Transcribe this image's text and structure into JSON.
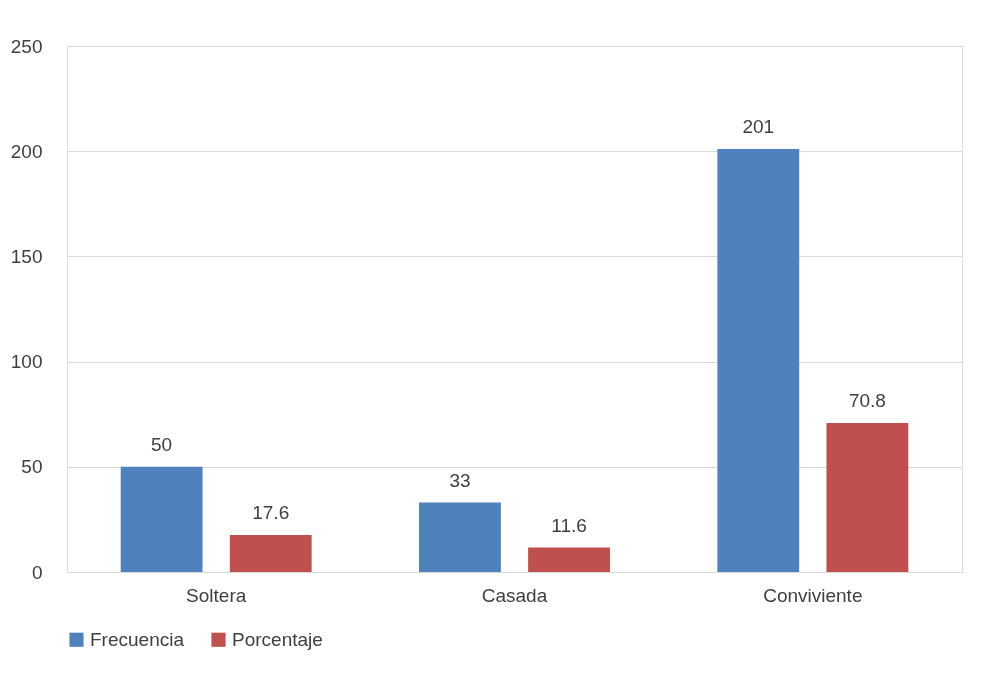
{
  "chart_data": {
    "type": "bar",
    "categories": [
      "Soltera",
      "Casada",
      "Conviviente"
    ],
    "series": [
      {
        "name": "Frecuencia",
        "color": "#4f81bd",
        "values": [
          50,
          33,
          201
        ]
      },
      {
        "name": "Porcentaje",
        "color": "#c0504d",
        "values": [
          17.6,
          11.6,
          70.8
        ]
      }
    ],
    "ylim": [
      0,
      250
    ],
    "yticks": [
      0,
      50,
      100,
      150,
      200,
      250
    ],
    "grid": "y",
    "legend": "bottom",
    "data_labels": true
  }
}
